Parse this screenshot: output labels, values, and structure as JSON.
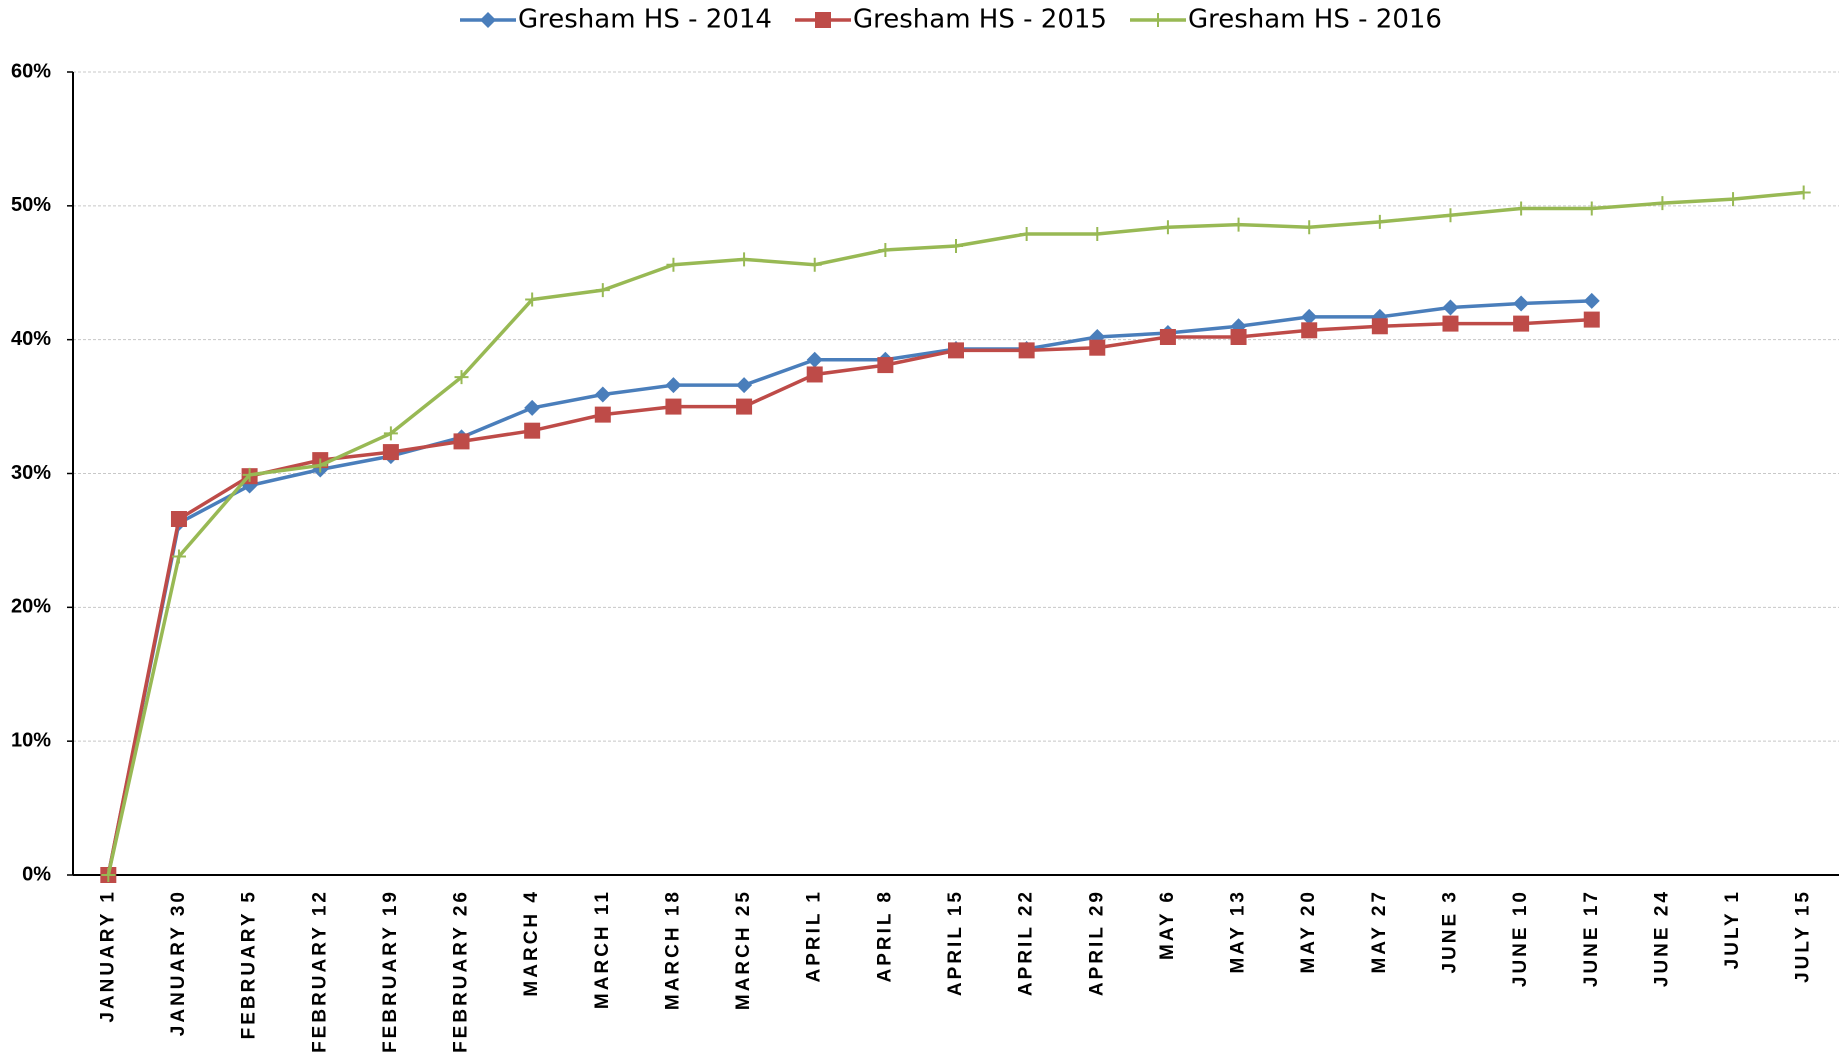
{
  "chart_data": {
    "type": "line",
    "categories": [
      "JANUARY 1",
      "JANUARY 30",
      "FEBRUARY 5",
      "FEBRUARY 12",
      "FEBRUARY 19",
      "FEBRUARY 26",
      "MARCH 4",
      "MARCH 11",
      "MARCH 18",
      "MARCH 25",
      "APRIL 1",
      "APRIL 8",
      "APRIL 15",
      "APRIL 22",
      "APRIL 29",
      "MAY 6",
      "MAY 13",
      "MAY 20",
      "MAY 27",
      "JUNE 3",
      "JUNE 10",
      "JUNE 17",
      "JUNE 24",
      "JULY 1",
      "JULY 15"
    ],
    "series": [
      {
        "name": "Gresham HS - 2014",
        "color": "#4a7ebb",
        "marker": "diamond",
        "values": [
          0,
          26.3,
          29.1,
          30.3,
          31.3,
          32.7,
          34.9,
          35.9,
          36.6,
          36.6,
          38.5,
          38.5,
          39.3,
          39.3,
          40.2,
          40.5,
          41.0,
          41.7,
          41.7,
          42.4,
          42.7,
          42.9,
          null,
          null,
          null
        ]
      },
      {
        "name": "Gresham HS - 2015",
        "color": "#be4b48",
        "marker": "square",
        "values": [
          0,
          26.6,
          29.8,
          31.0,
          31.6,
          32.4,
          33.2,
          34.4,
          35.0,
          35.0,
          37.4,
          38.1,
          39.2,
          39.2,
          39.4,
          40.2,
          40.2,
          40.7,
          41.0,
          41.2,
          41.2,
          41.5,
          null,
          null,
          null
        ]
      },
      {
        "name": "Gresham HS - 2016",
        "color": "#98b954",
        "marker": "plus",
        "values": [
          0,
          23.8,
          29.9,
          30.6,
          33.0,
          37.2,
          43.0,
          43.7,
          45.6,
          46.0,
          45.6,
          46.7,
          47.0,
          47.9,
          47.9,
          48.4,
          48.6,
          48.4,
          48.8,
          49.3,
          49.8,
          49.8,
          50.2,
          50.5,
          51.0
        ]
      }
    ],
    "ylim": [
      0,
      60
    ],
    "yticks": [
      {
        "value": 0,
        "label": "0%"
      },
      {
        "value": 10,
        "label": "10%"
      },
      {
        "value": 20,
        "label": "20%"
      },
      {
        "value": 30,
        "label": "30%"
      },
      {
        "value": 40,
        "label": "40%"
      },
      {
        "value": 50,
        "label": "50%"
      },
      {
        "value": 60,
        "label": "60%"
      }
    ],
    "grid": true,
    "legend": "top"
  }
}
